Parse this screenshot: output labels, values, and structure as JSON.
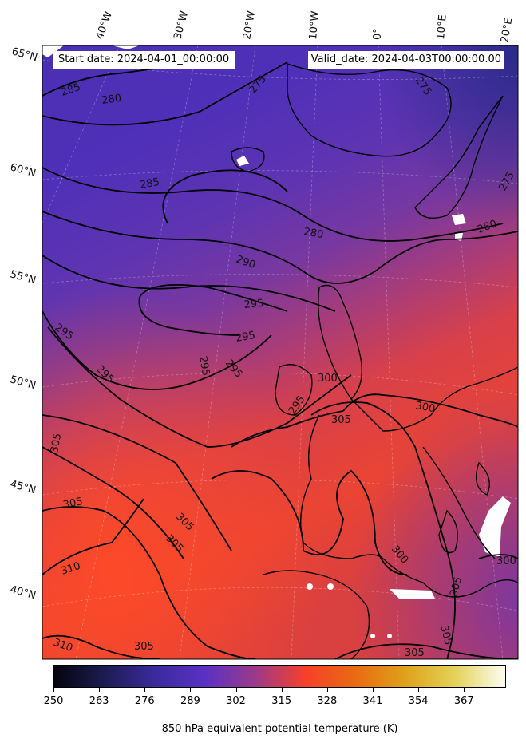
{
  "header": {
    "start_date": "Start date: 2024-04-01_00:00:00",
    "valid_date": "Valid_date: 2024-04-03T00:00:00.00"
  },
  "longitude_labels": [
    "40°W",
    "30°W",
    "20°W",
    "10°W",
    "0°",
    "10°E",
    "20°E"
  ],
  "latitude_labels": [
    "65°N",
    "60°N",
    "55°N",
    "50°N",
    "45°N",
    "40°N"
  ],
  "contour_labels": [
    "285",
    "280",
    "275",
    "275",
    "275",
    "285",
    "280",
    "280",
    "290",
    "295",
    "295",
    "295",
    "295",
    "295",
    "295",
    "295",
    "300",
    "300",
    "305",
    "305",
    "305",
    "305",
    "305",
    "300",
    "300",
    "305",
    "305",
    "310",
    "310",
    "305",
    "305"
  ],
  "colorbar": {
    "ticks": [
      "250",
      "263",
      "276",
      "289",
      "302",
      "315",
      "328",
      "341",
      "354",
      "367"
    ],
    "title": "850 hPa equivalent potential temperature (K)",
    "colors": [
      "#05040f",
      "#1c1c52",
      "#3a2a9c",
      "#5a31c4",
      "#9a3a8a",
      "#f6402a",
      "#e96a12",
      "#dea21b",
      "#e4d25a",
      "#fcfcf2"
    ]
  }
}
